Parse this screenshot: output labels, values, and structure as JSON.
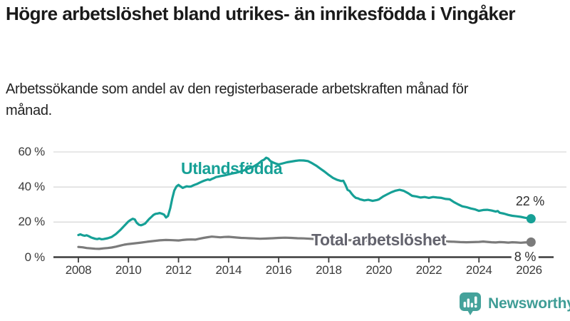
{
  "header": {
    "title": "Högre arbetslöshet bland utrikes- än inrikesfödda i Vingåker",
    "subtitle": "Arbetssökande som andel av den registerbaserade arbetskraften månad för månad."
  },
  "colors": {
    "teal": "#16a096",
    "gray": "#7b7b7b",
    "teal_label": "#16a096",
    "gray_label": "#63636d",
    "gridline": "#d9d9d9",
    "axis": "#3c3c3c",
    "tick_text": "#3a3a3a",
    "end_label_text": "#2e2e2e",
    "logo_teal": "#45a29b",
    "wordmark_teal": "#3f9d96"
  },
  "chart_data": {
    "type": "line",
    "y_unit": "%",
    "ylim": [
      0,
      62
    ],
    "xlim": [
      2007.2,
      2027.5
    ],
    "grid": "horizontal",
    "legend_position": "inline-labels",
    "y_ticks": [
      {
        "value": 0,
        "label": "0 %"
      },
      {
        "value": 20,
        "label": "20 %"
      },
      {
        "value": 40,
        "label": "40 %"
      },
      {
        "value": 60,
        "label": "60 %"
      }
    ],
    "x_ticks": [
      {
        "year": 2008,
        "label": "2008"
      },
      {
        "year": 2010,
        "label": "2010"
      },
      {
        "year": 2012,
        "label": "2012"
      },
      {
        "year": 2014,
        "label": "2014"
      },
      {
        "year": 2016,
        "label": "2016"
      },
      {
        "year": 2018,
        "label": "2018"
      },
      {
        "year": 2020,
        "label": "2020"
      },
      {
        "year": 2022,
        "label": "2022"
      },
      {
        "year": 2024,
        "label": "2024"
      },
      {
        "year": 2026,
        "label": "2026"
      }
    ],
    "series": [
      {
        "name": "Utlandsfödda",
        "color_key": "teal",
        "end_label": "22 %",
        "end_value": 22,
        "points": [
          [
            2008.0,
            12.6
          ],
          [
            2008.08,
            13.0
          ],
          [
            2008.17,
            12.5
          ],
          [
            2008.25,
            12.2
          ],
          [
            2008.33,
            12.5
          ],
          [
            2008.42,
            11.9
          ],
          [
            2008.5,
            11.3
          ],
          [
            2008.58,
            10.9
          ],
          [
            2008.67,
            10.5
          ],
          [
            2008.75,
            10.3
          ],
          [
            2008.83,
            10.6
          ],
          [
            2008.92,
            10.2
          ],
          [
            2009.0,
            10.3
          ],
          [
            2009.17,
            10.8
          ],
          [
            2009.33,
            11.5
          ],
          [
            2009.5,
            13.2
          ],
          [
            2009.67,
            15.4
          ],
          [
            2009.83,
            17.8
          ],
          [
            2010.0,
            20.4
          ],
          [
            2010.08,
            21.2
          ],
          [
            2010.17,
            21.9
          ],
          [
            2010.25,
            21.5
          ],
          [
            2010.33,
            19.6
          ],
          [
            2010.42,
            18.5
          ],
          [
            2010.5,
            18.2
          ],
          [
            2010.58,
            18.6
          ],
          [
            2010.67,
            19.2
          ],
          [
            2010.75,
            20.5
          ],
          [
            2010.83,
            21.8
          ],
          [
            2010.92,
            23.0
          ],
          [
            2011.0,
            24.1
          ],
          [
            2011.08,
            24.7
          ],
          [
            2011.17,
            24.9
          ],
          [
            2011.25,
            25.2
          ],
          [
            2011.33,
            24.8
          ],
          [
            2011.42,
            24.3
          ],
          [
            2011.5,
            22.6
          ],
          [
            2011.58,
            23.5
          ],
          [
            2011.67,
            28.0
          ],
          [
            2011.75,
            33.5
          ],
          [
            2011.83,
            38.0
          ],
          [
            2011.92,
            40.3
          ],
          [
            2012.0,
            41.2
          ],
          [
            2012.08,
            40.3
          ],
          [
            2012.17,
            39.5
          ],
          [
            2012.25,
            40.0
          ],
          [
            2012.33,
            40.4
          ],
          [
            2012.42,
            40.2
          ],
          [
            2012.5,
            40.3
          ],
          [
            2012.58,
            40.9
          ],
          [
            2012.67,
            41.4
          ],
          [
            2012.75,
            41.8
          ],
          [
            2012.83,
            42.4
          ],
          [
            2012.92,
            43.0
          ],
          [
            2013.0,
            43.5
          ],
          [
            2013.08,
            43.9
          ],
          [
            2013.17,
            44.3
          ],
          [
            2013.25,
            44.0
          ],
          [
            2013.33,
            44.6
          ],
          [
            2013.42,
            45.1
          ],
          [
            2013.5,
            45.7
          ],
          [
            2013.58,
            45.9
          ],
          [
            2013.67,
            46.2
          ],
          [
            2013.83,
            46.6
          ],
          [
            2014.0,
            47.2
          ],
          [
            2014.17,
            47.8
          ],
          [
            2014.33,
            48.3
          ],
          [
            2014.5,
            48.9
          ],
          [
            2014.67,
            49.8
          ],
          [
            2014.83,
            50.7
          ],
          [
            2015.0,
            51.7
          ],
          [
            2015.17,
            53.2
          ],
          [
            2015.33,
            55.0
          ],
          [
            2015.42,
            55.6
          ],
          [
            2015.5,
            56.7
          ],
          [
            2015.58,
            56.2
          ],
          [
            2015.67,
            54.8
          ],
          [
            2015.75,
            54.2
          ],
          [
            2015.83,
            53.7
          ],
          [
            2015.92,
            53.2
          ],
          [
            2016.0,
            52.9
          ],
          [
            2016.17,
            53.5
          ],
          [
            2016.33,
            54.1
          ],
          [
            2016.5,
            54.5
          ],
          [
            2016.67,
            54.9
          ],
          [
            2016.83,
            55.2
          ],
          [
            2017.0,
            55.1
          ],
          [
            2017.17,
            54.8
          ],
          [
            2017.33,
            53.6
          ],
          [
            2017.5,
            52.2
          ],
          [
            2017.67,
            50.4
          ],
          [
            2017.83,
            48.8
          ],
          [
            2018.0,
            46.9
          ],
          [
            2018.17,
            45.2
          ],
          [
            2018.33,
            44.1
          ],
          [
            2018.5,
            43.4
          ],
          [
            2018.58,
            43.6
          ],
          [
            2018.67,
            41.2
          ],
          [
            2018.75,
            38.4
          ],
          [
            2018.83,
            37.8
          ],
          [
            2018.92,
            36.1
          ],
          [
            2019.0,
            34.8
          ],
          [
            2019.08,
            33.8
          ],
          [
            2019.17,
            33.5
          ],
          [
            2019.25,
            33.0
          ],
          [
            2019.42,
            32.4
          ],
          [
            2019.58,
            32.7
          ],
          [
            2019.75,
            32.1
          ],
          [
            2019.92,
            32.6
          ],
          [
            2020.0,
            32.9
          ],
          [
            2020.17,
            34.6
          ],
          [
            2020.33,
            35.8
          ],
          [
            2020.5,
            37.0
          ],
          [
            2020.67,
            37.9
          ],
          [
            2020.83,
            38.4
          ],
          [
            2021.0,
            37.8
          ],
          [
            2021.17,
            36.5
          ],
          [
            2021.33,
            35.0
          ],
          [
            2021.5,
            34.6
          ],
          [
            2021.67,
            34.0
          ],
          [
            2021.83,
            34.3
          ],
          [
            2022.0,
            33.8
          ],
          [
            2022.17,
            34.3
          ],
          [
            2022.33,
            34.0
          ],
          [
            2022.5,
            33.8
          ],
          [
            2022.67,
            33.2
          ],
          [
            2022.83,
            33.0
          ],
          [
            2023.0,
            31.4
          ],
          [
            2023.17,
            30.1
          ],
          [
            2023.33,
            29.0
          ],
          [
            2023.5,
            28.5
          ],
          [
            2023.67,
            27.8
          ],
          [
            2023.83,
            27.3
          ],
          [
            2024.0,
            26.4
          ],
          [
            2024.17,
            26.9
          ],
          [
            2024.33,
            27.0
          ],
          [
            2024.5,
            26.6
          ],
          [
            2024.67,
            26.0
          ],
          [
            2024.75,
            26.3
          ],
          [
            2024.83,
            25.3
          ],
          [
            2025.0,
            24.8
          ],
          [
            2025.17,
            24.1
          ],
          [
            2025.33,
            23.6
          ],
          [
            2025.5,
            23.3
          ],
          [
            2025.67,
            23.0
          ],
          [
            2025.83,
            22.5
          ],
          [
            2026.0,
            22.1
          ],
          [
            2026.08,
            21.9
          ]
        ]
      },
      {
        "name": "Total arbetslöshet",
        "color_key": "gray",
        "end_label": "8 %",
        "end_value": 8,
        "points": [
          [
            2008.0,
            5.8
          ],
          [
            2008.17,
            5.6
          ],
          [
            2008.33,
            5.2
          ],
          [
            2008.5,
            5.0
          ],
          [
            2008.67,
            4.8
          ],
          [
            2008.83,
            4.7
          ],
          [
            2009.0,
            5.0
          ],
          [
            2009.17,
            5.2
          ],
          [
            2009.33,
            5.5
          ],
          [
            2009.5,
            6.0
          ],
          [
            2009.67,
            6.6
          ],
          [
            2009.83,
            7.1
          ],
          [
            2010.0,
            7.5
          ],
          [
            2010.25,
            7.9
          ],
          [
            2010.5,
            8.3
          ],
          [
            2010.75,
            8.8
          ],
          [
            2011.0,
            9.2
          ],
          [
            2011.25,
            9.6
          ],
          [
            2011.5,
            9.8
          ],
          [
            2011.75,
            9.7
          ],
          [
            2012.0,
            9.5
          ],
          [
            2012.17,
            9.8
          ],
          [
            2012.33,
            10.0
          ],
          [
            2012.5,
            10.1
          ],
          [
            2012.67,
            10.0
          ],
          [
            2012.83,
            10.5
          ],
          [
            2013.0,
            11.0
          ],
          [
            2013.17,
            11.4
          ],
          [
            2013.33,
            11.7
          ],
          [
            2013.5,
            11.5
          ],
          [
            2013.67,
            11.3
          ],
          [
            2013.83,
            11.5
          ],
          [
            2014.0,
            11.6
          ],
          [
            2014.17,
            11.4
          ],
          [
            2014.33,
            11.2
          ],
          [
            2014.5,
            11.0
          ],
          [
            2014.67,
            10.9
          ],
          [
            2014.83,
            10.8
          ],
          [
            2015.0,
            10.7
          ],
          [
            2015.25,
            10.5
          ],
          [
            2015.5,
            10.6
          ],
          [
            2015.75,
            10.8
          ],
          [
            2016.0,
            11.0
          ],
          [
            2016.25,
            11.1
          ],
          [
            2016.5,
            11.0
          ],
          [
            2016.75,
            10.8
          ],
          [
            2017.0,
            10.7
          ],
          [
            2017.25,
            10.5
          ],
          [
            2017.5,
            10.3
          ],
          [
            2017.75,
            10.2
          ],
          [
            2018.0,
            10.1
          ],
          [
            2018.25,
            9.9
          ],
          [
            2018.5,
            9.8
          ],
          [
            2018.75,
            9.7
          ],
          [
            2019.0,
            9.6
          ],
          [
            2019.25,
            9.5
          ],
          [
            2019.5,
            9.4
          ],
          [
            2019.75,
            9.6
          ],
          [
            2020.0,
            10.0
          ],
          [
            2020.25,
            10.6
          ],
          [
            2020.5,
            10.9
          ],
          [
            2020.75,
            10.7
          ],
          [
            2021.0,
            10.4
          ],
          [
            2021.25,
            10.1
          ],
          [
            2021.5,
            9.8
          ],
          [
            2021.75,
            9.6
          ],
          [
            2022.0,
            9.3
          ],
          [
            2022.25,
            9.1
          ],
          [
            2022.5,
            9.0
          ],
          [
            2022.75,
            8.9
          ],
          [
            2023.0,
            8.8
          ],
          [
            2023.25,
            8.6
          ],
          [
            2023.5,
            8.5
          ],
          [
            2023.75,
            8.6
          ],
          [
            2024.0,
            8.7
          ],
          [
            2024.17,
            8.9
          ],
          [
            2024.33,
            8.7
          ],
          [
            2024.5,
            8.5
          ],
          [
            2024.67,
            8.4
          ],
          [
            2024.83,
            8.6
          ],
          [
            2025.0,
            8.5
          ],
          [
            2025.17,
            8.3
          ],
          [
            2025.33,
            8.5
          ],
          [
            2025.5,
            8.4
          ],
          [
            2025.67,
            8.2
          ],
          [
            2025.83,
            8.4
          ],
          [
            2026.0,
            8.5
          ],
          [
            2026.08,
            8.6
          ]
        ]
      }
    ]
  },
  "footer": {
    "brand": "Newsworthy"
  }
}
